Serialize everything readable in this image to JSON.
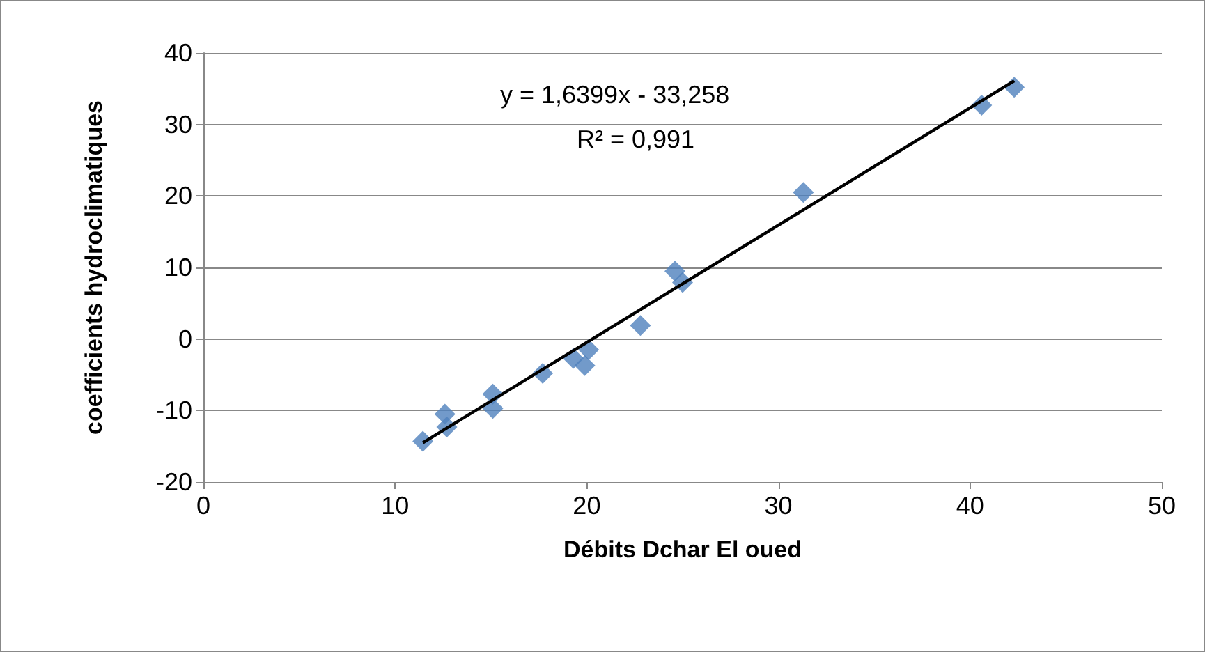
{
  "chart_data": {
    "type": "scatter",
    "xlabel": "Débits Dchar El oued",
    "ylabel": "coefficients hydroclimatiques",
    "annotations": [
      "y = 1,6399x - 33,258",
      "R² = 0,991"
    ],
    "series": [
      {
        "color": "#4f81bd",
        "marker": "diamond",
        "x": [
          11.45,
          12.6,
          12.7,
          15.1,
          15.1,
          17.7,
          19.3,
          19.9,
          20.1,
          22.8,
          24.6,
          25.0,
          31.3,
          40.6,
          42.3
        ],
        "values": [
          -14.3,
          -10.5,
          -12.3,
          -7.7,
          -9.7,
          -4.8,
          -2.7,
          -3.7,
          -1.5,
          1.9,
          9.5,
          7.9,
          20.5,
          32.7,
          35.2
        ]
      },
      {
        "type": "line",
        "color": "#000000",
        "marker": "none",
        "line_style": "solid",
        "x": [
          11.45,
          42.3
        ],
        "values": [
          -14.5,
          36.1
        ]
      }
    ],
    "xlim": [
      0,
      50
    ],
    "xticks": [
      0,
      10,
      20,
      30,
      40,
      50
    ],
    "ylim": [
      -20,
      40
    ],
    "yticks": [
      -20,
      -10,
      0,
      10,
      20,
      30,
      40
    ],
    "grid": "y"
  }
}
